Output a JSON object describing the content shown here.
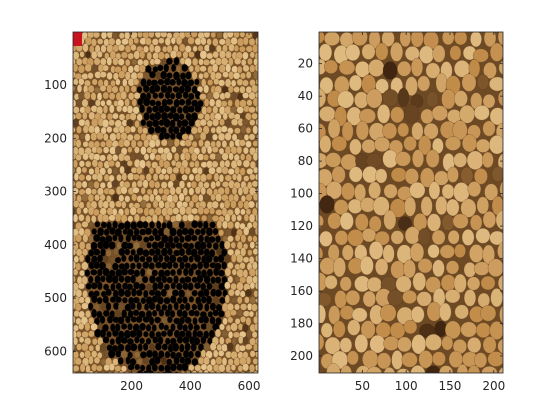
{
  "chart_data": [
    {
      "type": "image",
      "title": "",
      "xlabel": "",
      "ylabel": "",
      "xlim": [
        0.5,
        630.5
      ],
      "ylim": [
        0.5,
        640.5
      ],
      "y_direction": "reverse",
      "x_ticks": [
        200,
        400,
        600
      ],
      "y_ticks": [
        100,
        200,
        300,
        400,
        500,
        600
      ],
      "content": "photomosaic of seeds/grains forming a large figure",
      "marker_color": "#c8141e",
      "colors": {
        "base": "#7a5228",
        "seed": "#c99a5a",
        "highlight": "#ecd09a",
        "shadow": "#4a2e14"
      }
    },
    {
      "type": "image",
      "title": "",
      "xlabel": "",
      "ylabel": "",
      "xlim": [
        0.5,
        210.5
      ],
      "ylim": [
        0.5,
        210.5
      ],
      "y_direction": "reverse",
      "x_ticks": [
        50,
        100,
        150,
        200
      ],
      "y_ticks": [
        20,
        40,
        60,
        80,
        100,
        120,
        140,
        160,
        180,
        200
      ],
      "content": "close-up texture of seeds/grains",
      "colors": {
        "base": "#6e4a24",
        "seed": "#c08a48",
        "highlight": "#e8c890",
        "shadow": "#3e2410"
      }
    }
  ]
}
